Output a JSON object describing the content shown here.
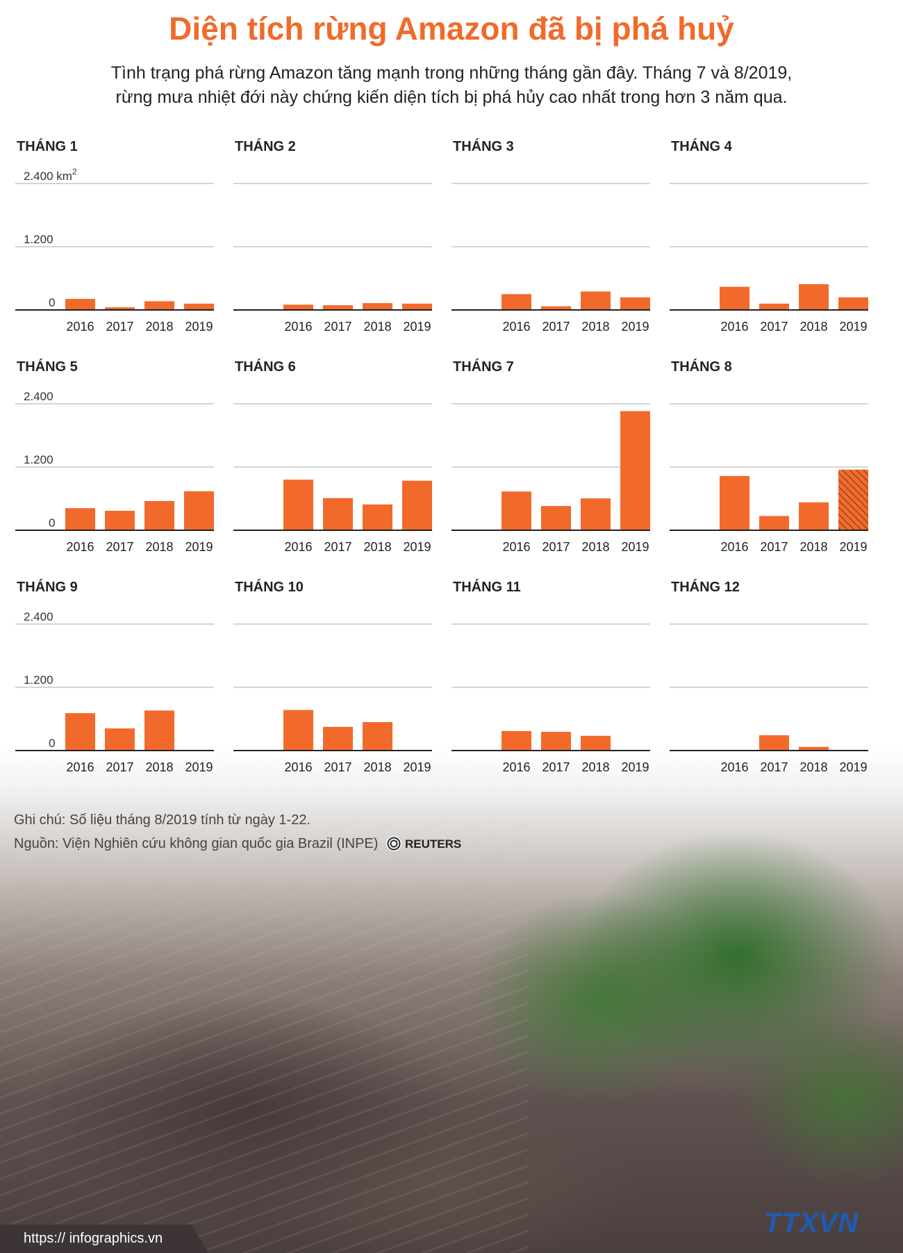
{
  "title": "Diện tích rừng Amazon đã bị phá huỷ",
  "subtitle_line1": "Tình trạng phá rừng Amazon tăng mạnh trong những tháng gần đây. Tháng 7 và 8/2019,",
  "subtitle_line2": "rừng mưa nhiệt đới này chứng kiến diện tích bị phá hủy cao nhất trong hơn 3 năm qua.",
  "note": "Ghi chú: Số liệu tháng 8/2019 tính từ ngày 1-22.",
  "source": "Nguồn: Viện Nghiên cứu không gian quốc gia Brazil (INPE)",
  "source_brand": "REUTERS",
  "footer_url": "https:// infographics.vn",
  "logo_text": "TTXVN",
  "colors": {
    "accent": "#f06b2a",
    "bar": "#f26a2b",
    "text": "#222222",
    "grid": "#bbbbbb"
  },
  "chart_data": {
    "type": "bar",
    "unit": "km²",
    "ylim": [
      0,
      2400
    ],
    "yticks": [
      "0",
      "1.200",
      "2.400"
    ],
    "first_top_tick": "2.400 km",
    "first_top_tick_sup": "2",
    "categories": [
      "2016",
      "2017",
      "2018",
      "2019"
    ],
    "panels": [
      {
        "title": "THÁNG 1",
        "values": [
          210,
          50,
          165,
          120
        ]
      },
      {
        "title": "THÁNG 2",
        "values": [
          100,
          90,
          130,
          120
        ]
      },
      {
        "title": "THÁNG 3",
        "values": [
          300,
          70,
          350,
          240
        ]
      },
      {
        "title": "THÁNG 4",
        "values": [
          440,
          120,
          490,
          240
        ]
      },
      {
        "title": "THÁNG 5",
        "values": [
          420,
          370,
          555,
          740
        ]
      },
      {
        "title": "THÁNG 6",
        "values": [
          960,
          610,
          490,
          940
        ]
      },
      {
        "title": "THÁNG 7",
        "values": [
          735,
          460,
          605,
          2260
        ]
      },
      {
        "title": "THÁNG 8",
        "values": [
          1030,
          270,
          530,
          1150
        ],
        "note": "2019: partial month, hatched"
      },
      {
        "title": "THÁNG 9",
        "values": [
          710,
          420,
          760,
          0
        ]
      },
      {
        "title": "THÁNG 10",
        "values": [
          770,
          450,
          540,
          0
        ]
      },
      {
        "title": "THÁNG 11",
        "values": [
          370,
          355,
          280,
          0
        ]
      },
      {
        "title": "THÁNG 12",
        "values": [
          0,
          290,
          70,
          0
        ]
      }
    ]
  }
}
